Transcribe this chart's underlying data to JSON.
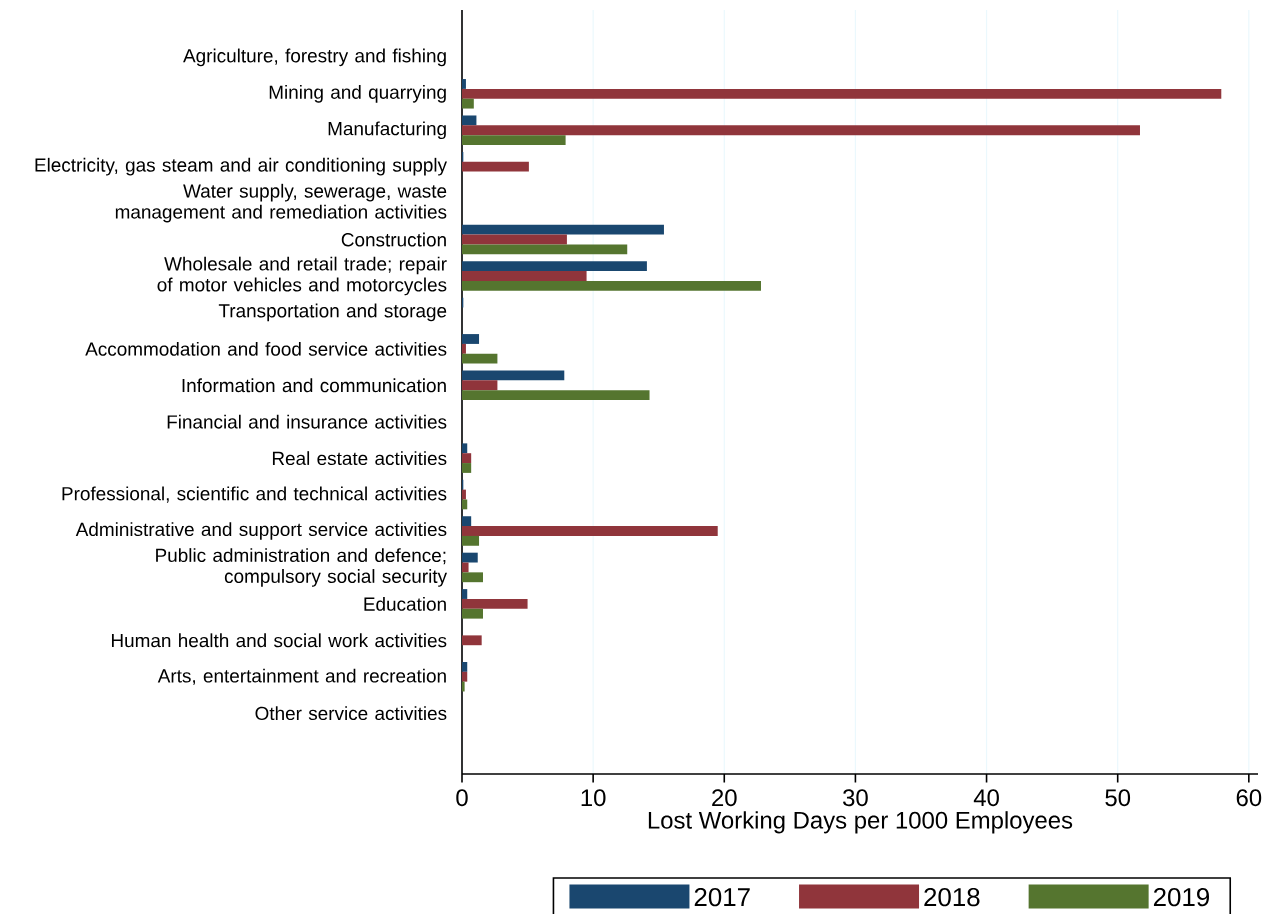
{
  "chart_data": {
    "type": "bar",
    "orientation": "horizontal",
    "xlabel": "Lost Working Days per 1000 Employees",
    "categories": [
      "Agriculture, forestry and fishing",
      "Mining and quarrying",
      "Manufacturing",
      "Electricity, gas steam and air conditioning supply",
      "Water supply, sewerage, waste management and remediation activities",
      "Construction",
      "Wholesale and retail trade; repair of motor vehicles and motorcycles",
      "Transportation and storage",
      "Accommodation and food service activities",
      "Information and communication",
      "Financial and insurance activities",
      "Real estate activities",
      "Professional, scientific and technical activities",
      "Administrative and support service activities",
      "Public administration and defence; compulsory social security",
      "Education",
      "Human health and social work activities",
      "Arts, entertainment and recreation",
      "Other service activities"
    ],
    "series": [
      {
        "name": "2017",
        "color": "#1a476f",
        "values": [
          0,
          0.3,
          1.1,
          0.1,
          0,
          15.4,
          14.1,
          0.1,
          1.3,
          7.8,
          0,
          0.4,
          0.1,
          0.7,
          1.2,
          0.4,
          0,
          0.4,
          0
        ]
      },
      {
        "name": "2018",
        "color": "#90353b",
        "values": [
          0,
          57.9,
          51.7,
          5.1,
          0,
          8.0,
          9.5,
          0,
          0.3,
          2.7,
          0,
          0.7,
          0.3,
          19.5,
          0.5,
          5.0,
          1.5,
          0.4,
          0
        ]
      },
      {
        "name": "2019",
        "color": "#55752f",
        "values": [
          0,
          0.9,
          7.9,
          0,
          0,
          12.6,
          22.8,
          0,
          2.7,
          14.3,
          0,
          0.7,
          0.4,
          1.3,
          1.6,
          1.6,
          0,
          0.2,
          0
        ]
      }
    ],
    "xlim": [
      0,
      60.7
    ],
    "xticks": [
      0,
      10,
      20,
      30,
      40,
      50,
      60
    ],
    "grid": "x",
    "legend": "bottom"
  }
}
